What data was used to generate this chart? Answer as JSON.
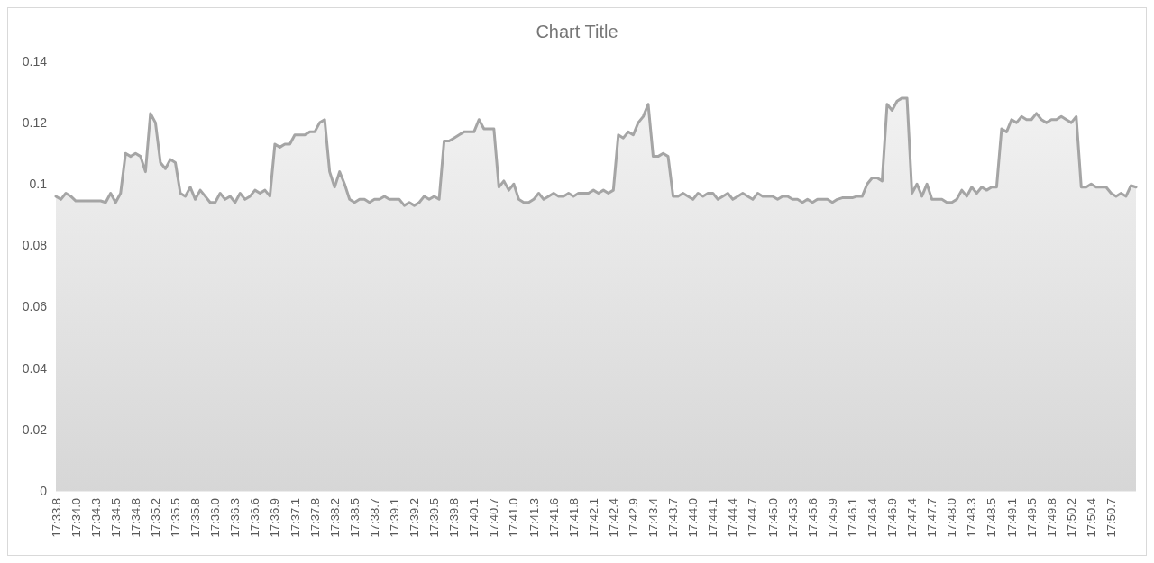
{
  "chart_data": {
    "type": "area",
    "title": "Chart Title",
    "categories": [
      "17:33.8",
      null,
      null,
      null,
      "17:34.0",
      null,
      null,
      null,
      "17:34.3",
      null,
      null,
      null,
      "17:34.5",
      null,
      null,
      null,
      "17:34.8",
      null,
      null,
      null,
      "17:35.2",
      null,
      null,
      null,
      "17:35.5",
      null,
      null,
      null,
      "17:35.8",
      null,
      null,
      null,
      "17:36.0",
      null,
      null,
      null,
      "17:36.3",
      null,
      null,
      null,
      "17:36.6",
      null,
      null,
      null,
      "17:36.9",
      null,
      null,
      null,
      "17:37.1",
      null,
      null,
      null,
      "17:37.8",
      null,
      null,
      null,
      "17:38.2",
      null,
      null,
      null,
      "17:38.5",
      null,
      null,
      null,
      "17:38.7",
      null,
      null,
      null,
      "17:39.1",
      null,
      null,
      null,
      "17:39.2",
      null,
      null,
      null,
      "17:39.5",
      null,
      null,
      null,
      "17:39.8",
      null,
      null,
      null,
      "17:40.1",
      null,
      null,
      null,
      "17:40.7",
      null,
      null,
      null,
      "17:41.0",
      null,
      null,
      null,
      "17:41.3",
      null,
      null,
      null,
      "17:41.6",
      null,
      null,
      null,
      "17:41.8",
      null,
      null,
      null,
      "17:42.1",
      null,
      null,
      null,
      "17:42.4",
      null,
      null,
      null,
      "17:42.9",
      null,
      null,
      null,
      "17:43.4",
      null,
      null,
      null,
      "17:43.7",
      null,
      null,
      null,
      "17:44.0",
      null,
      null,
      null,
      "17:44.1",
      null,
      null,
      null,
      "17:44.4",
      null,
      null,
      null,
      "17:44.7",
      null,
      null,
      null,
      "17:45.0",
      null,
      null,
      null,
      "17:45.3",
      null,
      null,
      null,
      "17:45.6",
      null,
      null,
      null,
      "17:45.9",
      null,
      null,
      null,
      "17:46.1",
      null,
      null,
      null,
      "17:46.4",
      null,
      null,
      null,
      "17:46.9",
      null,
      null,
      null,
      "17:47.4",
      null,
      null,
      null,
      "17:47.7",
      null,
      null,
      null,
      "17:48.0",
      null,
      null,
      null,
      "17:48.3",
      null,
      null,
      null,
      "17:48.5",
      null,
      null,
      null,
      "17:49.1",
      null,
      null,
      null,
      "17:49.5",
      null,
      null,
      null,
      "17:49.8",
      null,
      null,
      null,
      "17:50.2",
      null,
      null,
      null,
      "17:50.4",
      null,
      null,
      null,
      "17:50.7",
      null,
      null,
      null,
      null,
      null
    ],
    "series": [
      {
        "color": "#a5a5a5",
        "values": [
          0.096,
          0.095,
          0.097,
          0.096,
          0.0945,
          0.0945,
          0.0945,
          0.0945,
          0.0945,
          0.0945,
          0.094,
          0.097,
          0.094,
          0.097,
          0.11,
          0.109,
          0.11,
          0.109,
          0.104,
          0.123,
          0.12,
          0.107,
          0.105,
          0.108,
          0.107,
          0.097,
          0.096,
          0.099,
          0.095,
          0.098,
          0.096,
          0.094,
          0.094,
          0.097,
          0.095,
          0.096,
          0.094,
          0.097,
          0.095,
          0.096,
          0.098,
          0.097,
          0.098,
          0.096,
          0.113,
          0.112,
          0.113,
          0.113,
          0.116,
          0.116,
          0.116,
          0.117,
          0.117,
          0.12,
          0.121,
          0.104,
          0.099,
          0.104,
          0.1,
          0.095,
          0.094,
          0.095,
          0.095,
          0.094,
          0.095,
          0.095,
          0.096,
          0.095,
          0.095,
          0.095,
          0.093,
          0.094,
          0.093,
          0.094,
          0.096,
          0.095,
          0.096,
          0.095,
          0.114,
          0.114,
          0.115,
          0.116,
          0.117,
          0.117,
          0.117,
          0.121,
          0.118,
          0.118,
          0.118,
          0.099,
          0.101,
          0.098,
          0.1,
          0.095,
          0.094,
          0.094,
          0.095,
          0.097,
          0.095,
          0.096,
          0.097,
          0.096,
          0.096,
          0.097,
          0.096,
          0.097,
          0.097,
          0.097,
          0.098,
          0.097,
          0.098,
          0.097,
          0.098,
          0.116,
          0.115,
          0.117,
          0.116,
          0.12,
          0.122,
          0.126,
          0.109,
          0.109,
          0.11,
          0.109,
          0.096,
          0.096,
          0.097,
          0.096,
          0.095,
          0.097,
          0.096,
          0.097,
          0.097,
          0.095,
          0.096,
          0.097,
          0.095,
          0.096,
          0.097,
          0.096,
          0.095,
          0.097,
          0.096,
          0.096,
          0.096,
          0.095,
          0.096,
          0.096,
          0.095,
          0.095,
          0.094,
          0.095,
          0.094,
          0.095,
          0.095,
          0.095,
          0.094,
          0.095,
          0.0955,
          0.0955,
          0.0955,
          0.096,
          0.096,
          0.1,
          0.102,
          0.102,
          0.101,
          0.126,
          0.124,
          0.127,
          0.128,
          0.128,
          0.097,
          0.1,
          0.096,
          0.1,
          0.095,
          0.095,
          0.095,
          0.094,
          0.094,
          0.095,
          0.098,
          0.096,
          0.099,
          0.097,
          0.099,
          0.098,
          0.099,
          0.099,
          0.118,
          0.117,
          0.121,
          0.12,
          0.122,
          0.121,
          0.121,
          0.123,
          0.121,
          0.12,
          0.121,
          0.121,
          0.122,
          0.121,
          0.12,
          0.122,
          0.099,
          0.099,
          0.1,
          0.099,
          0.099,
          0.099,
          0.097,
          0.096,
          0.097,
          0.096,
          0.0995,
          0.099
        ]
      }
    ],
    "ylim": [
      0,
      0.14
    ],
    "yticks": [
      0,
      0.02,
      0.04,
      0.06,
      0.08,
      0.1,
      0.12,
      0.14
    ]
  }
}
